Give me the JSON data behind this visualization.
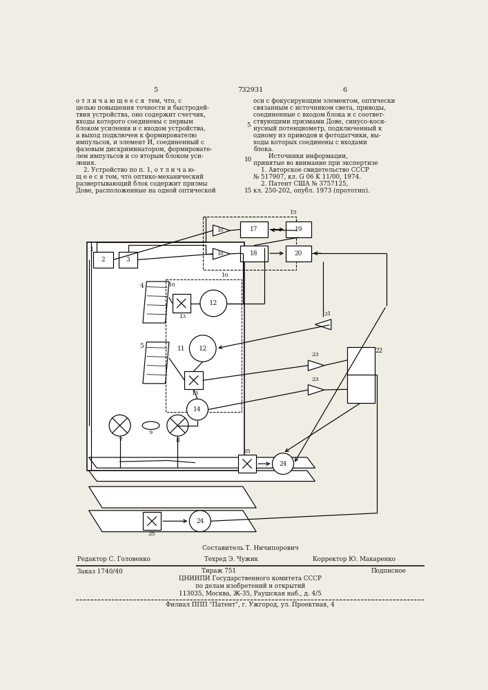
{
  "bg_color": "#f0ede4",
  "text_color": "#1a1a1a",
  "page_left": "5",
  "page_center": "732931",
  "page_right": "6",
  "left_col": [
    "о т л и ч а ю щ е е с я  тем, что, с",
    "целью повышения точности и быстродей-",
    "твия устройства, оно содержит счетчик,",
    "входы которого соединены с первым",
    "блоком усиления и с входом устройства,",
    "а выход подключен к формирователю",
    "импульсов, и элемент И, соединенный с",
    "фазовым дискриминатором, формировате-",
    "лем импульсов и со вторым блоком уси-",
    "ления.",
    "    2. Устройство по п. 1, о т л и ч а ю-",
    "щ е е с я тем, что оптико-механический",
    "развертывающий блок содержит призмы",
    "Дове, расположенные на одной оптической"
  ],
  "right_col": [
    "оси с фокусирующим элементом, оптически",
    "связанным с источником света, приводы,",
    "соединенные с входом блока и с соответ-",
    "ствующими призмами Дове, синусо-коси-",
    "нусный потенциометр, подключенный к",
    "одному из приводов и фотодатчики, вы-",
    "ходы которых соединены с входами",
    "блока.",
    "        Источники информации,",
    "принятые во внимание при экспертизе",
    "    1. Авторское свидетельство СССР",
    "№ 517907, кл. G 06 K 11/00, 1974.",
    "    2. Патент США № 3757125,",
    "кл. 250-202, опубл. 1973 (прототип)."
  ],
  "footnote_compositor": "Составитель Т. Ничипорович",
  "footnote_editor": "Редактор С. Головенко",
  "footnote_tech": "Техред Э. Чужик",
  "footnote_corrector": "Корректор Ю. Макаренко",
  "footnote_order": "Заказ 1740/40",
  "footnote_tirazh": "Тираж 751",
  "footnote_podpisnoe": "Подписное",
  "footnote_org": "ЦНИИПИ Государственного комитета СССР",
  "footnote_org2": "по делам изобретений и открытий",
  "footnote_addr": "113035, Москва, Ж-35, Раушская наб., д. 4/5",
  "footnote_filial": "Филиал ППП \"Патент\", г. Ужгород, ул. Проектная, 4"
}
